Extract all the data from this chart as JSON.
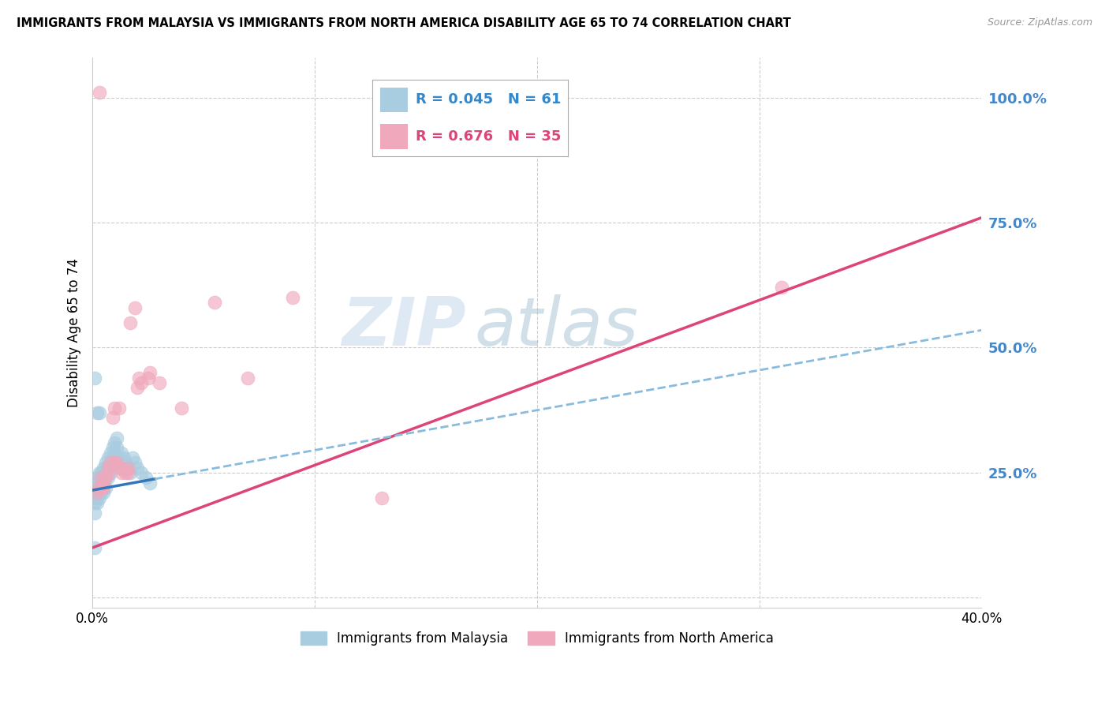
{
  "title": "IMMIGRANTS FROM MALAYSIA VS IMMIGRANTS FROM NORTH AMERICA DISABILITY AGE 65 TO 74 CORRELATION CHART",
  "source": "Source: ZipAtlas.com",
  "ylabel": "Disability Age 65 to 74",
  "xlim": [
    0.0,
    0.4
  ],
  "ylim": [
    -0.02,
    1.08
  ],
  "ytick_positions": [
    0.0,
    0.25,
    0.5,
    0.75,
    1.0
  ],
  "ytick_labels": [
    "",
    "25.0%",
    "50.0%",
    "75.0%",
    "100.0%"
  ],
  "legend1_r": "0.045",
  "legend1_n": "61",
  "legend2_r": "0.676",
  "legend2_n": "35",
  "legend1_label": "Immigrants from Malaysia",
  "legend2_label": "Immigrants from North America",
  "blue_color": "#a8cce0",
  "pink_color": "#f0a8bc",
  "trend_blue_solid": "#3377bb",
  "trend_blue_dash": "#88bbdd",
  "trend_pink": "#dd4477",
  "watermark_zip": "ZIP",
  "watermark_atlas": "atlas",
  "blue_x": [
    0.001,
    0.001,
    0.001,
    0.001,
    0.001,
    0.002,
    0.002,
    0.002,
    0.002,
    0.002,
    0.002,
    0.003,
    0.003,
    0.003,
    0.003,
    0.003,
    0.003,
    0.004,
    0.004,
    0.004,
    0.004,
    0.004,
    0.005,
    0.005,
    0.005,
    0.005,
    0.006,
    0.006,
    0.006,
    0.006,
    0.007,
    0.007,
    0.007,
    0.008,
    0.008,
    0.008,
    0.009,
    0.009,
    0.01,
    0.01,
    0.01,
    0.011,
    0.011,
    0.012,
    0.012,
    0.013,
    0.014,
    0.015,
    0.016,
    0.017,
    0.018,
    0.019,
    0.02,
    0.022,
    0.024,
    0.026,
    0.001,
    0.002,
    0.003,
    0.001,
    0.001
  ],
  "blue_y": [
    0.2,
    0.21,
    0.22,
    0.23,
    0.19,
    0.22,
    0.21,
    0.23,
    0.24,
    0.2,
    0.19,
    0.23,
    0.22,
    0.24,
    0.21,
    0.2,
    0.25,
    0.24,
    0.23,
    0.22,
    0.25,
    0.21,
    0.26,
    0.24,
    0.22,
    0.21,
    0.27,
    0.26,
    0.24,
    0.22,
    0.28,
    0.26,
    0.24,
    0.29,
    0.27,
    0.25,
    0.3,
    0.28,
    0.31,
    0.29,
    0.27,
    0.32,
    0.3,
    0.28,
    0.26,
    0.29,
    0.28,
    0.27,
    0.26,
    0.25,
    0.28,
    0.27,
    0.26,
    0.25,
    0.24,
    0.23,
    0.44,
    0.37,
    0.37,
    0.17,
    0.1
  ],
  "pink_x": [
    0.002,
    0.003,
    0.004,
    0.004,
    0.005,
    0.005,
    0.006,
    0.007,
    0.007,
    0.008,
    0.009,
    0.01,
    0.01,
    0.011,
    0.012,
    0.013,
    0.013,
    0.015,
    0.016,
    0.016,
    0.017,
    0.019,
    0.02,
    0.021,
    0.022,
    0.025,
    0.026,
    0.03,
    0.04,
    0.055,
    0.07,
    0.09,
    0.13,
    0.31,
    0.003
  ],
  "pink_y": [
    0.21,
    0.22,
    0.22,
    0.24,
    0.23,
    0.22,
    0.24,
    0.25,
    0.26,
    0.27,
    0.36,
    0.38,
    0.27,
    0.27,
    0.38,
    0.26,
    0.25,
    0.25,
    0.25,
    0.26,
    0.55,
    0.58,
    0.42,
    0.44,
    0.43,
    0.44,
    0.45,
    0.43,
    0.38,
    0.59,
    0.44,
    0.6,
    0.2,
    0.62,
    1.01
  ],
  "blue_trend_intercept": 0.215,
  "blue_trend_slope": 0.8,
  "pink_trend_intercept": 0.1,
  "pink_trend_slope": 1.65
}
